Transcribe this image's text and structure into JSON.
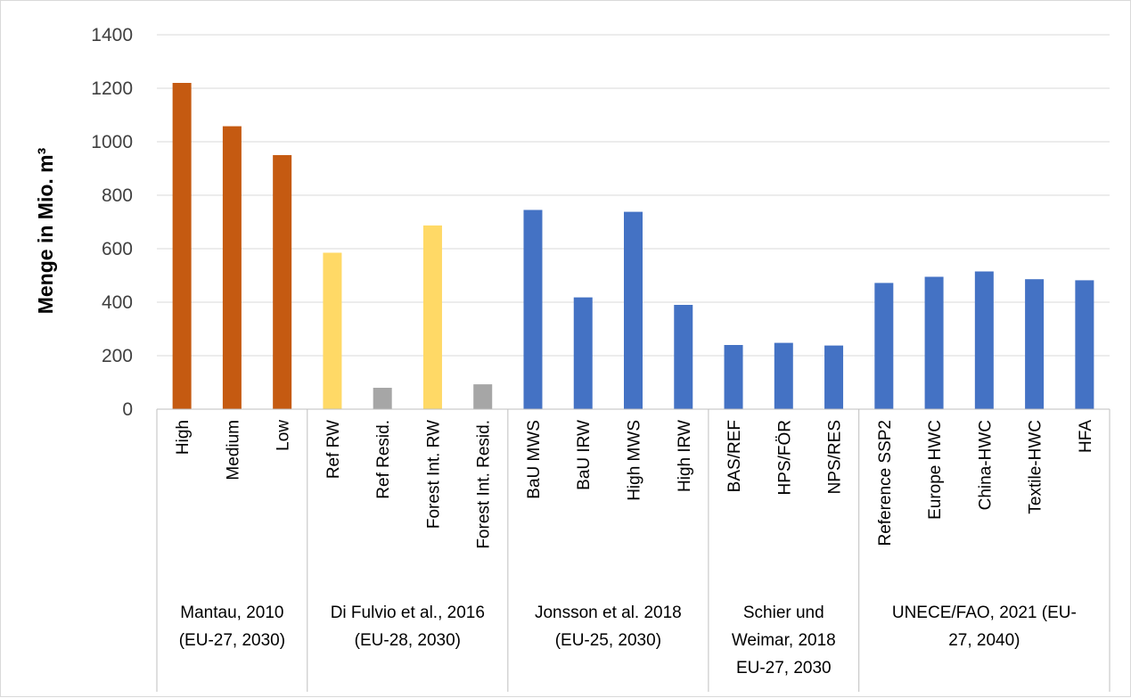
{
  "chart_data": {
    "type": "bar",
    "title": "",
    "xlabel": "",
    "ylabel": "Menge in Mio. m³",
    "ylim": [
      0,
      1400
    ],
    "yticks": [
      0,
      200,
      400,
      600,
      800,
      1000,
      1200,
      1400
    ],
    "grid": true,
    "legend": "none",
    "colors": {
      "orange": "#C55A11",
      "yellow": "#FFD966",
      "gray": "#A6A6A6",
      "blue": "#4472C4"
    },
    "groups": [
      {
        "label_lines": [
          "Mantau, 2010",
          "(EU-27, 2030)"
        ],
        "count": 3
      },
      {
        "label_lines": [
          "Di Fulvio et al., 2016",
          "(EU-28, 2030)"
        ],
        "count": 4
      },
      {
        "label_lines": [
          "Jonsson et al. 2018",
          "(EU-25, 2030)"
        ],
        "count": 4
      },
      {
        "label_lines": [
          "Schier und",
          "Weimar, 2018",
          "EU-27, 2030"
        ],
        "count": 3
      },
      {
        "label_lines": [
          "UNECE/FAO, 2021 (EU-",
          "27, 2040)"
        ],
        "count": 5
      }
    ],
    "bars": [
      {
        "category": "High",
        "value": 1220,
        "color": "orange"
      },
      {
        "category": "Medium",
        "value": 1058,
        "color": "orange"
      },
      {
        "category": "Low",
        "value": 950,
        "color": "orange"
      },
      {
        "category": "Ref RW",
        "value": 585,
        "color": "yellow"
      },
      {
        "category": "Ref Resid.",
        "value": 80,
        "color": "gray"
      },
      {
        "category": "Forest Int. RW",
        "value": 687,
        "color": "yellow"
      },
      {
        "category": "Forest Int. Resid.",
        "value": 93,
        "color": "gray"
      },
      {
        "category": "BaU MWS",
        "value": 745,
        "color": "blue"
      },
      {
        "category": "BaU IRW",
        "value": 418,
        "color": "blue"
      },
      {
        "category": "High MWS",
        "value": 738,
        "color": "blue"
      },
      {
        "category": "High IRW",
        "value": 390,
        "color": "blue"
      },
      {
        "category": "BAS/REF",
        "value": 240,
        "color": "blue"
      },
      {
        "category": "HPS/FÖR",
        "value": 248,
        "color": "blue"
      },
      {
        "category": "NPS/RES",
        "value": 238,
        "color": "blue"
      },
      {
        "category": "Reference SSP2",
        "value": 472,
        "color": "blue"
      },
      {
        "category": "Europe HWC",
        "value": 495,
        "color": "blue"
      },
      {
        "category": "China-HWC",
        "value": 515,
        "color": "blue"
      },
      {
        "category": "Textile-HWC",
        "value": 486,
        "color": "blue"
      },
      {
        "category": "HFA",
        "value": 482,
        "color": "blue"
      }
    ]
  }
}
